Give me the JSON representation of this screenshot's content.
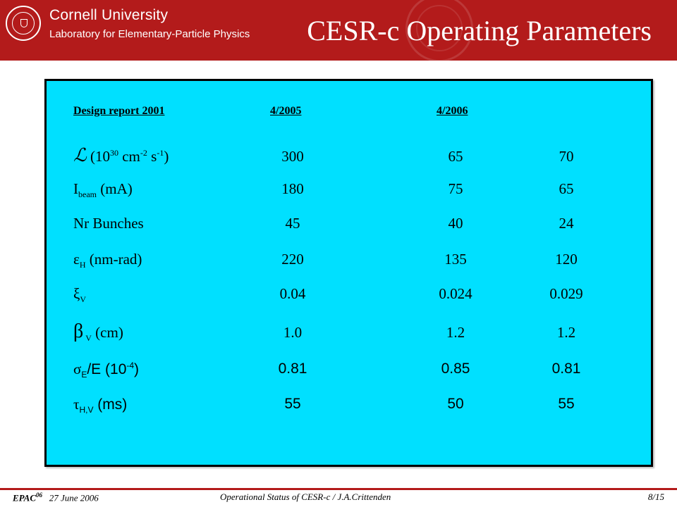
{
  "header": {
    "university": "Cornell University",
    "laboratory": "Laboratory for Elementary-Particle Physics",
    "title": "CESR-c Operating Parameters",
    "brand_color": "#b31b1b"
  },
  "table": {
    "background_color": "#00e0ff",
    "column_headers": [
      "Design report 2001",
      "4/2005",
      "4/2006"
    ],
    "rows": [
      {
        "label_symbol": "ℒ",
        "label_text": " (10",
        "sup1": "30",
        "mid1": " cm",
        "sup2": "-2",
        "mid2": " s",
        "sup3": "-1",
        "end": ")",
        "values": [
          "300",
          "65",
          "70"
        ]
      },
      {
        "label_symbol": "I",
        "sub": "beam",
        "label_text": " (mA)",
        "values": [
          "180",
          "75",
          "65"
        ]
      },
      {
        "label_text": "Nr Bunches",
        "values": [
          "45",
          "40",
          "24"
        ]
      },
      {
        "label_symbol": "ε",
        "sub": "H",
        "label_text": " (nm-rad)",
        "values": [
          "220",
          "135",
          "120"
        ]
      },
      {
        "label_symbol": "ξ",
        "sub": "V",
        "values": [
          "0.04",
          "0.024",
          "0.029"
        ]
      },
      {
        "label_symbol": "β",
        "sub": " V",
        "label_text": " (cm)",
        "values": [
          "1.0",
          "1.2",
          "1.2"
        ]
      },
      {
        "label_symbol": "σ",
        "sub": "E",
        "label_text": "/E (10",
        "sup1": "-4",
        "end": ")",
        "values": [
          "0.81",
          "0.85",
          "0.81"
        ]
      },
      {
        "label_symbol": "τ",
        "sub": "H,V",
        "label_text": " (ms)",
        "values": [
          "55",
          "50",
          "55"
        ]
      }
    ]
  },
  "footer": {
    "conference": "EPAC",
    "conference_sup": "06",
    "date": "27 June 2006",
    "talk": "Operational Status of CESR-c / J.A.Crittenden",
    "page": "8/15"
  }
}
